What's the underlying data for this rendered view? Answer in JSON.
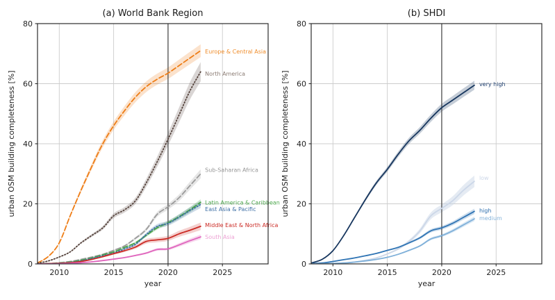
{
  "figure": {
    "kind": "matplotlib-style dual line chart",
    "background": "#ffffff"
  },
  "chart_data": [
    {
      "type": "line",
      "title": "(a) World Bank Region",
      "xlabel": "year",
      "ylabel": "urban OSM building completeness [%]",
      "xlim": [
        2008,
        2029.2
      ],
      "ylim": [
        0,
        80
      ],
      "xticks": [
        2010,
        2015,
        2020,
        2025
      ],
      "yticks": [
        0,
        20,
        40,
        60,
        80
      ],
      "grid": true,
      "grid_color": "#cccccc",
      "vline": {
        "x": 2020,
        "color": "#4c4c4c"
      },
      "label_x": 2023.4,
      "x": [
        2008,
        2009,
        2010,
        2011,
        2012,
        2013,
        2014,
        2015,
        2016,
        2017,
        2018,
        2019,
        2020,
        2021,
        2022,
        2023
      ],
      "series": [
        {
          "name": "Europe & Central Asia",
          "color": "#ee7d16",
          "label_color": "#ef8c2a",
          "style": "dashed",
          "band_frac": 0.03,
          "band_opacity": 0.22,
          "label_y": 70.6,
          "values": [
            0.3,
            2.5,
            7,
            16,
            24.5,
            32.5,
            40,
            46,
            51,
            55.5,
            59,
            61.5,
            63.5,
            66,
            68.5,
            71
          ]
        },
        {
          "name": "North America",
          "color": "#53413a",
          "label_color": "#8a7b73",
          "style": "dotted",
          "band_frac": 0.05,
          "band_opacity": 0.22,
          "label_y": 63.2,
          "values": [
            0.2,
            1,
            2.3,
            4,
            7,
            9.5,
            12,
            16,
            18,
            21,
            27,
            34,
            41.5,
            49.5,
            57.5,
            64
          ]
        },
        {
          "name": "Sub-Saharan Africa",
          "color": "#9b9b9b",
          "label_color": "#969696",
          "style": "dashed",
          "band_frac": 0.05,
          "band_opacity": 0.25,
          "label_y": 31.2,
          "values": [
            0,
            0.1,
            0.4,
            0.8,
            1.5,
            2.3,
            3.2,
            4.5,
            6,
            8.5,
            11.5,
            16.5,
            19,
            22,
            26,
            30
          ]
        },
        {
          "name": "Latin America & Caribbean",
          "color": "#47a345",
          "label_color": "#4ca64c",
          "style": "dashed",
          "band_frac": 0.05,
          "band_opacity": 0.25,
          "label_y": 20.4,
          "values": [
            0,
            0.1,
            0.3,
            0.6,
            1.2,
            2,
            3,
            4,
            5.5,
            7,
            9.5,
            12,
            13.7,
            15.7,
            18,
            20.5
          ]
        },
        {
          "name": "East Asia & Pacific",
          "color": "#3d6fa5",
          "label_color": "#3d6fa5",
          "style": "dotted",
          "band_frac": 0.06,
          "band_opacity": 0.25,
          "label_y": 18.1,
          "values": [
            0,
            0.1,
            0.2,
            0.5,
            1,
            1.8,
            2.7,
            3.6,
            5,
            6.5,
            9.8,
            12.5,
            13.5,
            15.5,
            17.7,
            19.8
          ]
        },
        {
          "name": "Middle East & North Africa",
          "color": "#cb2a24",
          "label_color": "#cb2a24",
          "style": "solid",
          "band_frac": 0.1,
          "band_opacity": 0.22,
          "label_y": 12.8,
          "values": [
            0,
            0.1,
            0.2,
            0.4,
            0.8,
            1.5,
            2.4,
            3.4,
            4.4,
            5.6,
            7.5,
            8,
            8.5,
            10,
            11.2,
            12.5
          ]
        },
        {
          "name": "South Asia",
          "color": "#df64bc",
          "label_color": "#eda2d4",
          "style": "solid",
          "band_frac": 0.09,
          "band_opacity": 0.25,
          "label_y": 8.9,
          "values": [
            0,
            0,
            0.1,
            0.2,
            0.4,
            0.7,
            1.1,
            1.6,
            2.1,
            2.8,
            3.6,
            4.8,
            5,
            6.3,
            7.7,
            9
          ]
        }
      ]
    },
    {
      "type": "line",
      "title": "(b) SHDI",
      "xlabel": "year",
      "ylabel": "urban OSM building completeness [%]",
      "xlim": [
        2008,
        2029.2
      ],
      "ylim": [
        0,
        80
      ],
      "xticks": [
        2010,
        2015,
        2020,
        2025
      ],
      "yticks": [
        0,
        20,
        40,
        60,
        80
      ],
      "grid": true,
      "grid_color": "#cccccc",
      "vline": {
        "x": 2020,
        "color": "#4c4c4c"
      },
      "label_x": 2023.45,
      "x": [
        2008,
        2009,
        2010,
        2011,
        2012,
        2013,
        2014,
        2015,
        2016,
        2017,
        2018,
        2019,
        2020,
        2021,
        2022,
        2023
      ],
      "series": [
        {
          "name": "very high",
          "color": "#17365e",
          "label_color": "#204070",
          "style": "solid",
          "band_frac": 0.025,
          "band_opacity": 0.25,
          "label_y": 59.8,
          "values": [
            0.3,
            1.5,
            4.4,
            9.5,
            15.5,
            21.5,
            27,
            31.5,
            36.5,
            41,
            44.5,
            48.5,
            52,
            54.5,
            57,
            59.5
          ]
        },
        {
          "name": "low",
          "color": "#ccd7e8",
          "label_color": "#ccd7e8",
          "style": "solid",
          "band_frac": 0.07,
          "band_opacity": 0.5,
          "label_y": 28.6,
          "values": [
            0,
            0.05,
            0.15,
            0.3,
            0.6,
            1.2,
            2,
            3.3,
            5,
            7.5,
            11,
            16,
            18.5,
            21,
            24.5,
            27.5
          ]
        },
        {
          "name": "high",
          "color": "#2f74b4",
          "label_color": "#2a6cac",
          "style": "solid",
          "band_frac": 0.05,
          "band_opacity": 0.25,
          "label_y": 17.7,
          "values": [
            0.1,
            0.3,
            0.8,
            1.4,
            2,
            2.7,
            3.5,
            4.5,
            5.5,
            7,
            8.7,
            11,
            12,
            13.5,
            15.5,
            17.5
          ]
        },
        {
          "name": "medium",
          "color": "#7fb0d9",
          "label_color": "#85b3da",
          "style": "solid",
          "band_frac": 0.05,
          "band_opacity": 0.3,
          "label_y": 15.2,
          "values": [
            0,
            0.05,
            0.15,
            0.3,
            0.6,
            1,
            1.5,
            2.2,
            3.2,
            4.5,
            6,
            8.3,
            9.4,
            11,
            13,
            15
          ]
        }
      ]
    }
  ],
  "style": {
    "spine_color": "#2b2b2b",
    "tick_text_color": "#1f1f1f",
    "title_color": "#1a1a1a"
  }
}
